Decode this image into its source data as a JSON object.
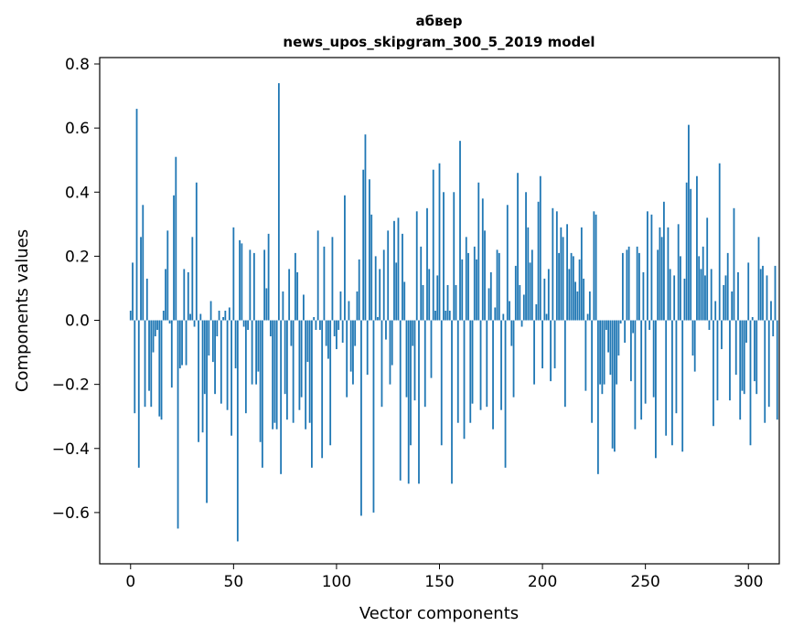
{
  "chart_data": {
    "type": "bar",
    "title_line1": "абвер",
    "title_line2": "news_upos_skipgram_300_5_2019 model",
    "xlabel": "Vector components",
    "ylabel": "Components values",
    "xlim": [
      -15,
      315
    ],
    "ylim": [
      -0.76,
      0.82
    ],
    "xticks": [
      0,
      50,
      100,
      150,
      200,
      250,
      300
    ],
    "xtick_labels": [
      "0",
      "50",
      "100",
      "150",
      "200",
      "250",
      "300"
    ],
    "yticks": [
      -0.6,
      -0.4,
      -0.2,
      0.0,
      0.2,
      0.4,
      0.6,
      0.8
    ],
    "ytick_labels": [
      "−0.6",
      "−0.4",
      "−0.2",
      "0.0",
      "0.2",
      "0.4",
      "0.6",
      "0.8"
    ],
    "color": "#1f77b4",
    "values": [
      0.03,
      0.18,
      -0.29,
      0.66,
      -0.46,
      0.26,
      0.36,
      -0.27,
      0.13,
      -0.22,
      -0.27,
      -0.1,
      -0.05,
      -0.03,
      -0.3,
      -0.31,
      0.03,
      0.16,
      0.28,
      -0.01,
      -0.21,
      0.39,
      0.51,
      -0.65,
      -0.15,
      -0.14,
      0.16,
      -0.14,
      0.15,
      0.02,
      0.26,
      -0.02,
      0.43,
      -0.38,
      0.02,
      -0.35,
      -0.23,
      -0.57,
      -0.11,
      0.06,
      -0.13,
      -0.23,
      -0.05,
      0.03,
      -0.26,
      0.01,
      0.03,
      -0.28,
      0.04,
      -0.36,
      0.29,
      -0.15,
      -0.69,
      0.25,
      0.24,
      -0.02,
      -0.29,
      -0.03,
      0.22,
      -0.2,
      0.21,
      -0.2,
      -0.16,
      -0.38,
      -0.46,
      0.22,
      0.1,
      0.27,
      -0.05,
      -0.34,
      -0.32,
      -0.34,
      0.74,
      -0.48,
      0.09,
      -0.23,
      -0.31,
      0.16,
      -0.08,
      -0.32,
      0.21,
      0.15,
      -0.28,
      -0.24,
      0.08,
      -0.34,
      -0.13,
      -0.32,
      -0.46,
      0.01,
      -0.03,
      0.28,
      -0.03,
      -0.43,
      0.23,
      -0.08,
      -0.12,
      -0.39,
      0.26,
      -0.05,
      -0.09,
      -0.03,
      0.09,
      -0.07,
      0.39,
      -0.24,
      0.06,
      -0.16,
      -0.2,
      -0.08,
      0.09,
      0.19,
      -0.61,
      0.47,
      0.58,
      -0.17,
      0.44,
      0.33,
      -0.6,
      0.2,
      0.01,
      0.16,
      -0.27,
      0.22,
      -0.06,
      0.28,
      -0.2,
      -0.14,
      0.31,
      0.18,
      0.32,
      -0.5,
      0.27,
      0.12,
      -0.24,
      -0.51,
      -0.39,
      -0.08,
      -0.25,
      0.34,
      -0.51,
      0.23,
      0.11,
      -0.27,
      0.35,
      0.16,
      -0.18,
      0.47,
      0.03,
      0.14,
      0.49,
      -0.39,
      0.4,
      0.03,
      0.11,
      0.03,
      -0.51,
      0.4,
      0.11,
      -0.32,
      0.56,
      0.19,
      -0.37,
      0.26,
      0.21,
      -0.32,
      -0.26,
      0.23,
      0.19,
      0.43,
      -0.28,
      0.38,
      0.28,
      -0.27,
      0.1,
      0.15,
      -0.34,
      0.04,
      0.22,
      0.21,
      -0.28,
      0.02,
      -0.46,
      0.36,
      0.06,
      -0.08,
      -0.24,
      0.17,
      0.46,
      0.11,
      -0.02,
      0.08,
      0.4,
      0.29,
      0.18,
      0.22,
      -0.2,
      0.05,
      0.37,
      0.45,
      -0.15,
      0.13,
      0.02,
      0.16,
      -0.19,
      0.35,
      -0.15,
      0.34,
      0.21,
      0.29,
      0.26,
      -0.27,
      0.3,
      0.16,
      0.21,
      0.2,
      0.12,
      0.09,
      0.19,
      0.29,
      0.13,
      -0.22,
      0.02,
      0.09,
      -0.32,
      0.34,
      0.33,
      -0.48,
      -0.2,
      -0.23,
      -0.2,
      -0.03,
      -0.1,
      -0.17,
      -0.4,
      -0.41,
      -0.2,
      -0.11,
      -0.01,
      0.21,
      -0.07,
      0.22,
      0.23,
      -0.19,
      -0.04,
      -0.34,
      0.23,
      0.21,
      -0.31,
      0.15,
      -0.26,
      0.34,
      -0.03,
      0.33,
      -0.24,
      -0.43,
      0.22,
      0.29,
      0.26,
      0.37,
      -0.36,
      0.29,
      0.16,
      -0.39,
      0.14,
      -0.29,
      0.3,
      0.2,
      -0.41,
      0.13,
      0.43,
      0.61,
      0.41,
      -0.11,
      -0.16,
      0.45,
      0.2,
      0.16,
      0.23,
      0.14,
      0.32,
      -0.03,
      0.16,
      -0.33,
      0.06,
      -0.25,
      0.49,
      -0.09,
      0.11,
      0.14,
      0.21,
      -0.25,
      0.09,
      0.35,
      -0.17,
      0.15,
      -0.31,
      -0.22,
      -0.23,
      -0.07,
      0.18,
      -0.39,
      0.01,
      -0.19,
      -0.23,
      0.26,
      0.16,
      0.17,
      -0.32,
      0.14,
      -0.27,
      0.06,
      -0.05,
      0.17,
      -0.31
    ]
  }
}
